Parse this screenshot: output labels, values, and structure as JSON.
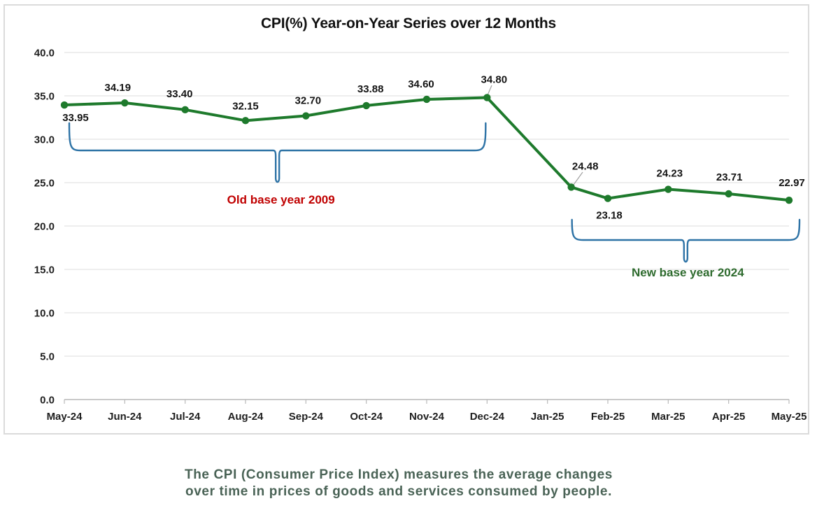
{
  "chart_data": {
    "type": "line",
    "title": "CPI(%) Year-on-Year Series over 12 Months",
    "categories": [
      "May-24",
      "Jun-24",
      "Jul-24",
      "Aug-24",
      "Sep-24",
      "Oct-24",
      "Nov-24",
      "Dec-24",
      "Jan-25",
      "Feb-25",
      "Mar-25",
      "Apr-25",
      "May-25"
    ],
    "series": [
      {
        "name": "CPI year-on-year %",
        "color": "#1E7A2C",
        "values": [
          33.95,
          34.19,
          33.4,
          32.15,
          32.7,
          33.88,
          34.6,
          34.8,
          24.48,
          23.18,
          24.23,
          23.71,
          22.97
        ]
      }
    ],
    "xlabel": "",
    "ylabel": "",
    "ylim": [
      0,
      40
    ],
    "ytick_step": 5,
    "grid": true,
    "legend": "none",
    "annotations": [
      {
        "id": "old-base",
        "label": "Old base year 2009",
        "color": "#C00000",
        "brace_color": "#2E73A6",
        "from_category": "May-24",
        "to_category": "Dec-24"
      },
      {
        "id": "new-base",
        "label": "New base year 2024",
        "color": "#2E6B2E",
        "brace_color": "#2E73A6",
        "from_category": "Jan-25",
        "to_category": "May-25"
      }
    ]
  },
  "caption": {
    "line1": "The CPI (Consumer Price Index) measures the average changes",
    "line2": "over time in prices of goods and services consumed by people."
  }
}
